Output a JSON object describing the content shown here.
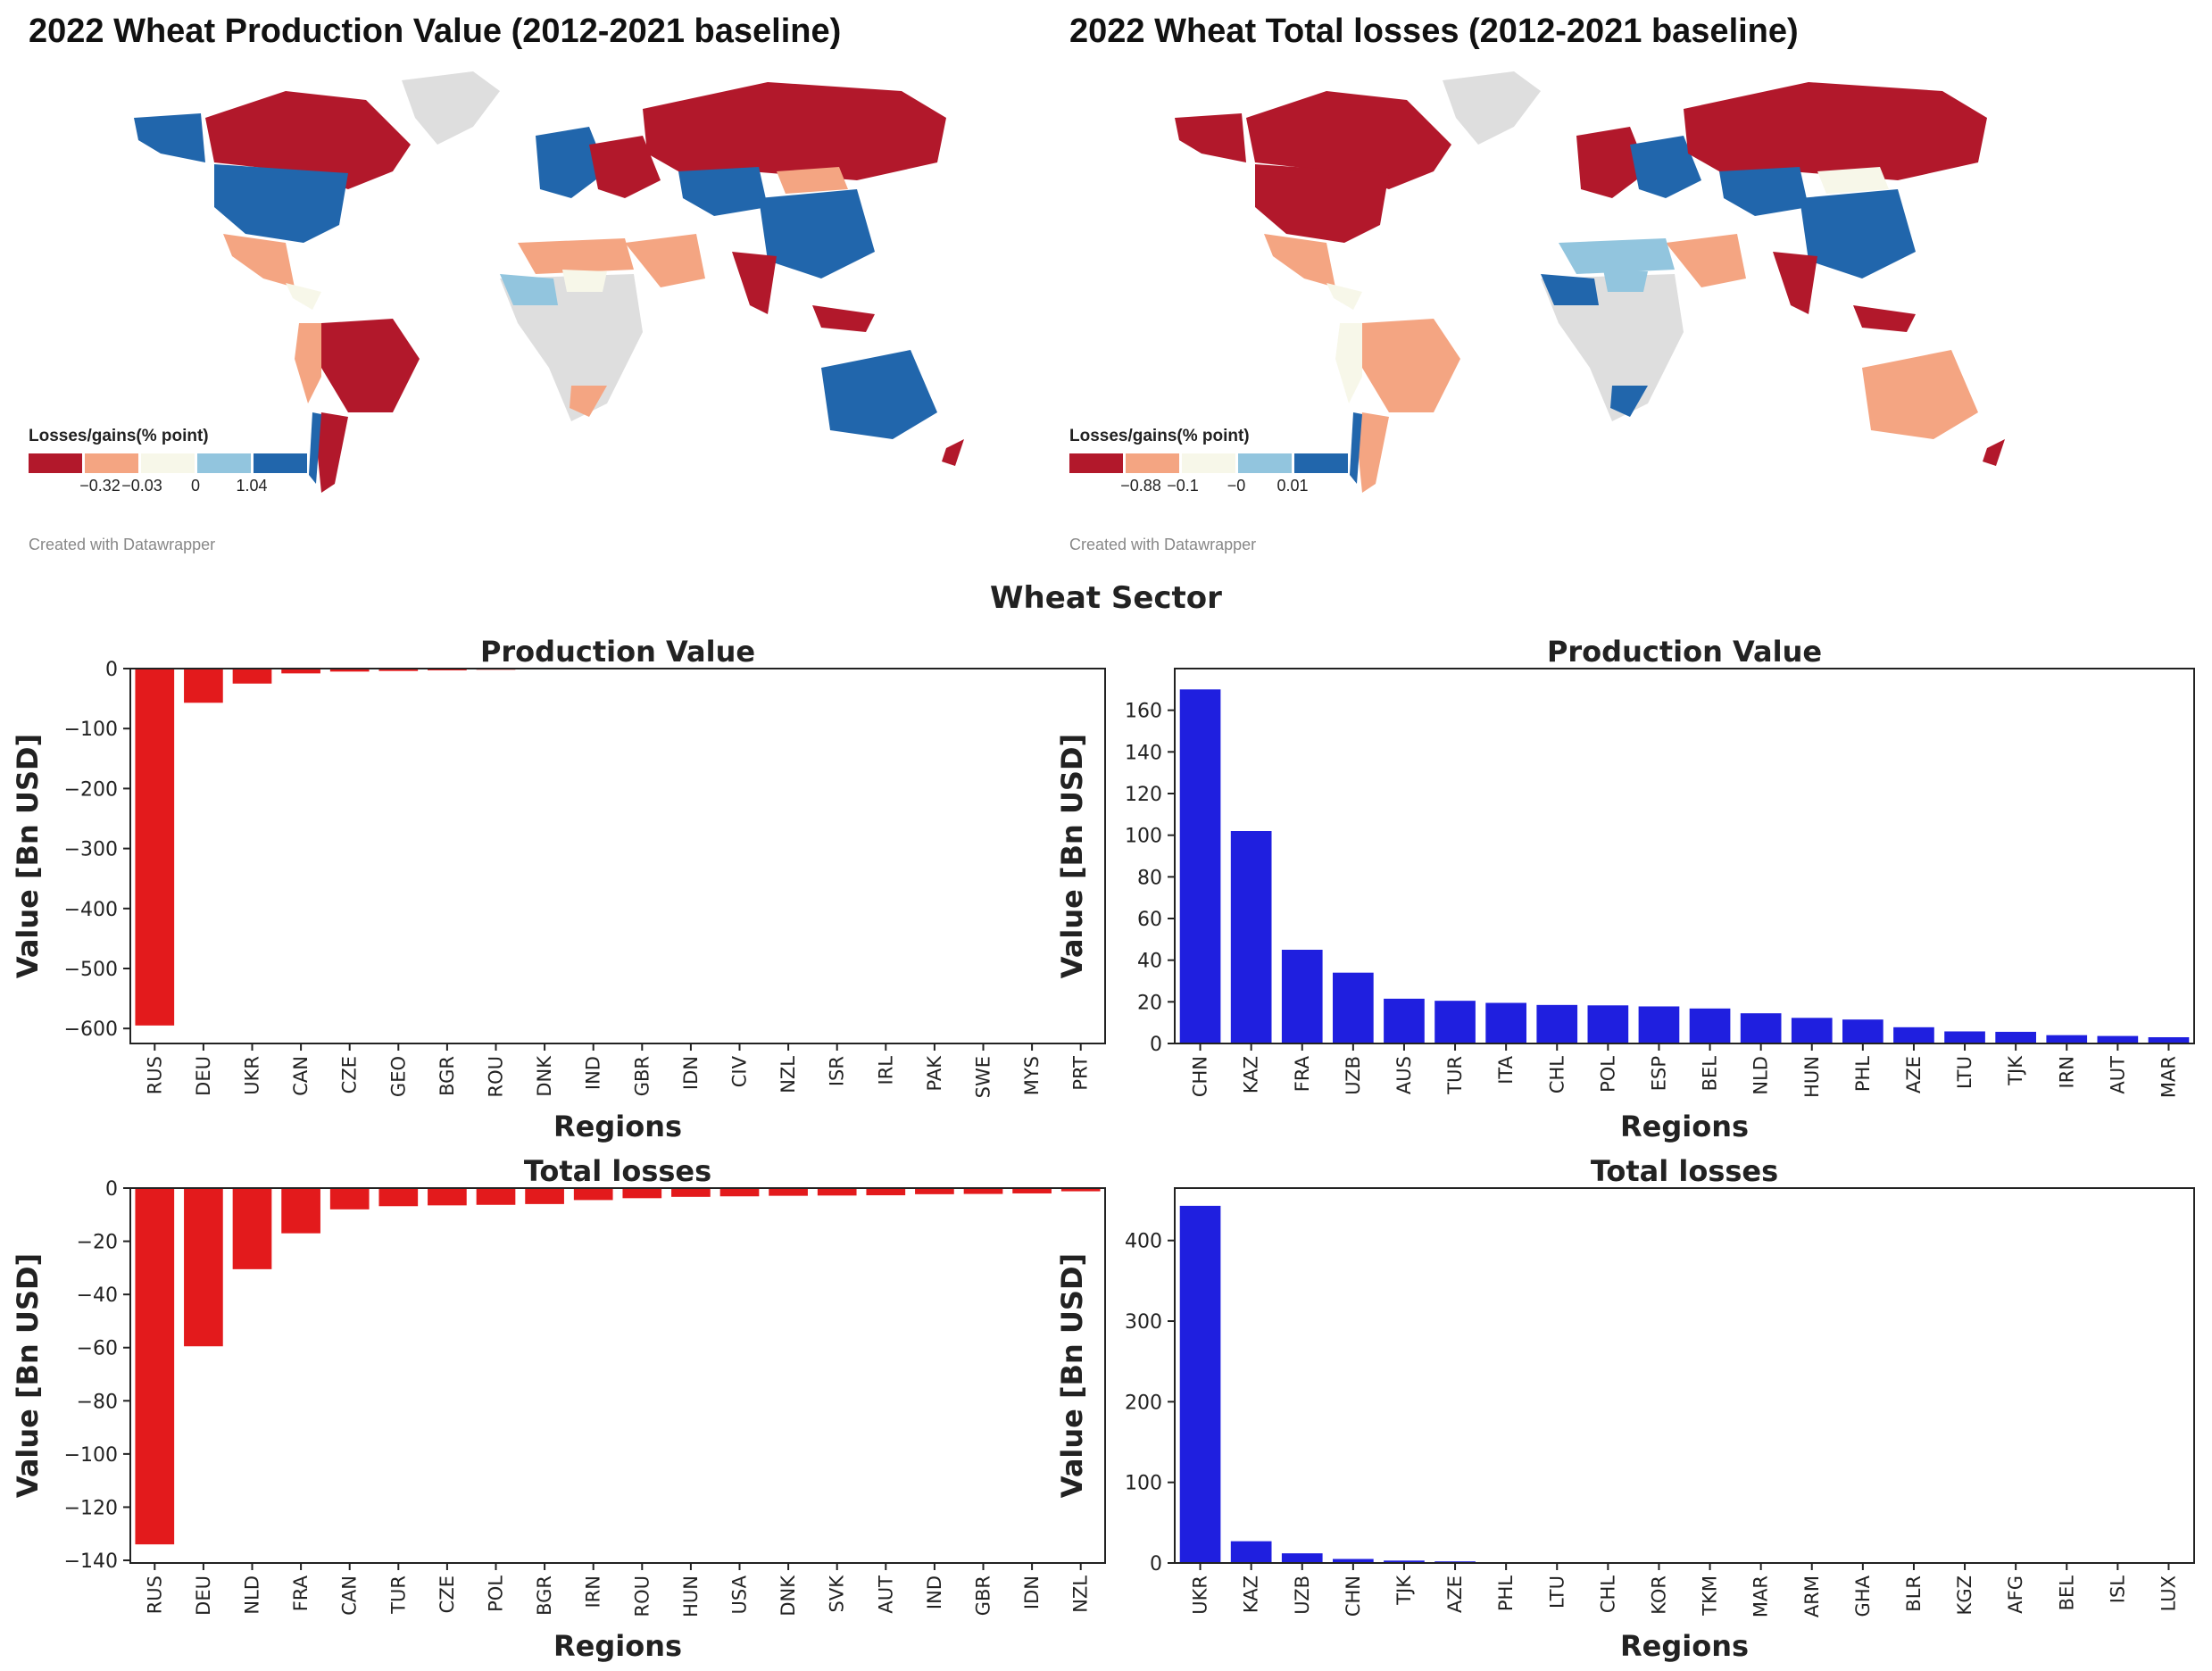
{
  "maps": [
    {
      "title": "2022 Wheat Production Value (2012-2021 baseline)",
      "legend_title": "Losses/gains(% point)",
      "legend_ticks": [
        "−0.32",
        "−0.03",
        "0",
        "1.04"
      ],
      "credit": "Created with Datawrapper"
    },
    {
      "title": "2022 Wheat Total losses (2012-2021 baseline)",
      "legend_title": "Losses/gains(% point)",
      "legend_ticks": [
        "−0.88",
        "−0.1",
        "−0",
        "0.01"
      ],
      "credit": "Created with Datawrapper"
    }
  ],
  "colors": {
    "scale": [
      "#b2182b",
      "#f4a582",
      "#f7f7e9",
      "#92c5de",
      "#2166ac"
    ],
    "no_data": "#dedede",
    "neg_bar": "#e31a1c",
    "pos_bar": "#1f1fdf"
  },
  "suptitle": "Wheat Sector",
  "chart_data": [
    {
      "type": "bar",
      "title": "Production Value",
      "xlabel": "Regions",
      "ylabel": "Value [Bn USD]",
      "ylim": [
        -625,
        0
      ],
      "yticks": [
        0,
        -100,
        -200,
        -300,
        -400,
        -500,
        -600
      ],
      "categories": [
        "RUS",
        "DEU",
        "UKR",
        "CAN",
        "CZE",
        "GEO",
        "BGR",
        "ROU",
        "DNK",
        "IND",
        "GBR",
        "IDN",
        "CIV",
        "NZL",
        "ISR",
        "IRL",
        "PAK",
        "SWE",
        "MYS",
        "PRT"
      ],
      "values": [
        -595,
        -57,
        -25,
        -8,
        -5,
        -4,
        -3,
        -2,
        -1.5,
        -1.2,
        -1,
        -0.8,
        -0.6,
        -0.5,
        -0.4,
        -0.3,
        -0.3,
        -0.2,
        -0.2,
        -0.1
      ],
      "color": "neg"
    },
    {
      "type": "bar",
      "title": "Production Value",
      "xlabel": "Regions",
      "ylabel": "Value [Bn USD]",
      "ylim": [
        0,
        180
      ],
      "yticks": [
        0,
        20,
        40,
        60,
        80,
        100,
        120,
        140,
        160
      ],
      "categories": [
        "CHN",
        "KAZ",
        "FRA",
        "UZB",
        "AUS",
        "TUR",
        "ITA",
        "CHL",
        "POL",
        "ESP",
        "BEL",
        "NLD",
        "HUN",
        "PHL",
        "AZE",
        "LTU",
        "TJK",
        "IRN",
        "AUT",
        "MAR"
      ],
      "values": [
        170,
        102,
        45,
        34,
        21.5,
        20.5,
        19.5,
        18.5,
        18.3,
        17.8,
        16.8,
        14.5,
        12.3,
        11.5,
        7.8,
        5.8,
        5.6,
        4,
        3.6,
        3
      ],
      "color": "pos"
    },
    {
      "type": "bar",
      "title": "Total losses",
      "xlabel": "Regions",
      "ylabel": "Value [Bn USD]",
      "ylim": [
        -141,
        0
      ],
      "yticks": [
        0,
        -20,
        -40,
        -60,
        -80,
        -100,
        -120,
        -140
      ],
      "categories": [
        "RUS",
        "DEU",
        "NLD",
        "FRA",
        "CAN",
        "TUR",
        "CZE",
        "POL",
        "BGR",
        "IRN",
        "ROU",
        "HUN",
        "USA",
        "DNK",
        "SVK",
        "AUT",
        "IND",
        "GBR",
        "IDN",
        "NZL"
      ],
      "values": [
        -134,
        -59.5,
        -30.5,
        -17,
        -8,
        -6.8,
        -6.5,
        -6.3,
        -6,
        -4.5,
        -3.8,
        -3.3,
        -3.1,
        -2.9,
        -2.8,
        -2.7,
        -2.3,
        -2.2,
        -2,
        -1.2
      ],
      "color": "neg"
    },
    {
      "type": "bar",
      "title": "Total losses",
      "xlabel": "Regions",
      "ylabel": "Value [Bn USD]",
      "ylim": [
        0,
        465
      ],
      "yticks": [
        0,
        100,
        200,
        300,
        400
      ],
      "categories": [
        "UKR",
        "KAZ",
        "UZB",
        "CHN",
        "TJK",
        "AZE",
        "PHL",
        "LTU",
        "CHL",
        "KOR",
        "TKM",
        "MAR",
        "ARM",
        "GHA",
        "BLR",
        "KGZ",
        "AFG",
        "BEL",
        "ISL",
        "LUX"
      ],
      "values": [
        443,
        27,
        12,
        5,
        3,
        2,
        0.8,
        0.5,
        0.4,
        0.3,
        0.3,
        0.2,
        0.2,
        0.2,
        0.1,
        0.1,
        0.1,
        0.1,
        0.1,
        0.1
      ],
      "color": "pos"
    }
  ]
}
